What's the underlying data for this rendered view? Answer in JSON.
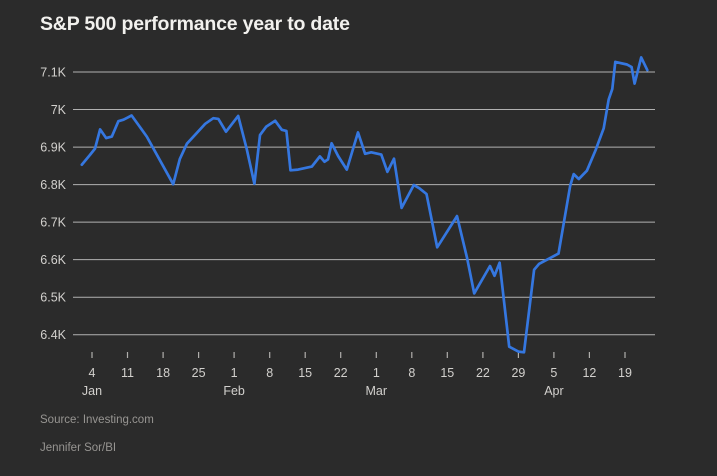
{
  "title": "S&P 500 performance year to date",
  "footer": {
    "source": "Source: Investing.com",
    "byline": "Jennifer Sor/BI"
  },
  "colors": {
    "background": "#2b2b2b",
    "line": "#3577e0",
    "grid": "#c9c9c9",
    "title_text": "#f2f1ee",
    "axis_text": "#d2d0cd",
    "footer_text": "#979592"
  },
  "chart_data": {
    "type": "line",
    "title": "S&P 500 performance year to date",
    "xlabel": "",
    "ylabel": "",
    "x_unit": "calendar day of year (Jan 1 = 1)",
    "y_unit": "S&P 500 index level (K = thousands of points)",
    "grid": "horizontal",
    "legend": "none",
    "x_axis": {
      "range_days": [
        1,
        115
      ],
      "tick_days": [
        4,
        11,
        18,
        25,
        32,
        39,
        46,
        53,
        60,
        67,
        74,
        81,
        88,
        95,
        102,
        109
      ],
      "tick_labels": [
        "4",
        "11",
        "18",
        "25",
        "1",
        "8",
        "15",
        "22",
        "1",
        "8",
        "15",
        "22",
        "29",
        "5",
        "12",
        "19"
      ],
      "month_labels": [
        {
          "label": "Jan",
          "day": 4
        },
        {
          "label": "Feb",
          "day": 32
        },
        {
          "label": "Mar",
          "day": 60
        },
        {
          "label": "Apr",
          "day": 95
        }
      ]
    },
    "y_axis": {
      "range": [
        6.32,
        7.18
      ],
      "tick_values": [
        7.1,
        7.0,
        6.9,
        6.8,
        6.7,
        6.6,
        6.5,
        6.4
      ],
      "tick_labels": [
        "7.1K",
        "7K",
        "6.9K",
        "6.8K",
        "6.7K",
        "6.6K",
        "6.5K",
        "6.4K"
      ]
    },
    "series": [
      {
        "name": "S&P 500",
        "points": [
          [
            2.0,
            6.853
          ],
          [
            3.6,
            6.879
          ],
          [
            4.6,
            6.896
          ],
          [
            5.6,
            6.947
          ],
          [
            6.8,
            6.924
          ],
          [
            7.9,
            6.928
          ],
          [
            9.2,
            6.969
          ],
          [
            10.2,
            6.973
          ],
          [
            11.8,
            6.984
          ],
          [
            13.3,
            6.956
          ],
          [
            14.8,
            6.928
          ],
          [
            20.0,
            6.801
          ],
          [
            21.3,
            6.868
          ],
          [
            22.7,
            6.909
          ],
          [
            24.6,
            6.937
          ],
          [
            26.3,
            6.962
          ],
          [
            27.9,
            6.977
          ],
          [
            28.9,
            6.975
          ],
          [
            30.4,
            6.941
          ],
          [
            32.8,
            6.983
          ],
          [
            34.5,
            6.894
          ],
          [
            36.0,
            6.802
          ],
          [
            37.1,
            6.932
          ],
          [
            38.3,
            6.954
          ],
          [
            40.1,
            6.97
          ],
          [
            41.4,
            6.946
          ],
          [
            42.3,
            6.943
          ],
          [
            43.1,
            6.838
          ],
          [
            44.6,
            6.84
          ],
          [
            47.3,
            6.848
          ],
          [
            48.9,
            6.875
          ],
          [
            49.8,
            6.861
          ],
          [
            50.5,
            6.867
          ],
          [
            51.2,
            6.91
          ],
          [
            52.5,
            6.876
          ],
          [
            54.2,
            6.84
          ],
          [
            56.4,
            6.939
          ],
          [
            57.8,
            6.882
          ],
          [
            59.0,
            6.886
          ],
          [
            61.0,
            6.88
          ],
          [
            62.2,
            6.834
          ],
          [
            63.5,
            6.869
          ],
          [
            65.0,
            6.738
          ],
          [
            67.4,
            6.799
          ],
          [
            68.5,
            6.79
          ],
          [
            69.9,
            6.775
          ],
          [
            72.0,
            6.633
          ],
          [
            75.9,
            6.716
          ],
          [
            77.9,
            6.604
          ],
          [
            79.3,
            6.51
          ],
          [
            82.4,
            6.583
          ],
          [
            83.3,
            6.557
          ],
          [
            84.3,
            6.592
          ],
          [
            86.2,
            6.368
          ],
          [
            88.0,
            6.355
          ],
          [
            89.1,
            6.353
          ],
          [
            91.1,
            6.573
          ],
          [
            92.1,
            6.589
          ],
          [
            95.9,
            6.616
          ],
          [
            98.2,
            6.797
          ],
          [
            98.9,
            6.828
          ],
          [
            99.9,
            6.815
          ],
          [
            101.5,
            6.837
          ],
          [
            103.2,
            6.891
          ],
          [
            104.8,
            6.95
          ],
          [
            105.8,
            7.027
          ],
          [
            106.5,
            7.055
          ],
          [
            107.1,
            7.127
          ],
          [
            109.4,
            7.12
          ],
          [
            110.3,
            7.113
          ],
          [
            110.9,
            7.069
          ],
          [
            112.2,
            7.139
          ],
          [
            113.4,
            7.105
          ]
        ]
      }
    ]
  }
}
